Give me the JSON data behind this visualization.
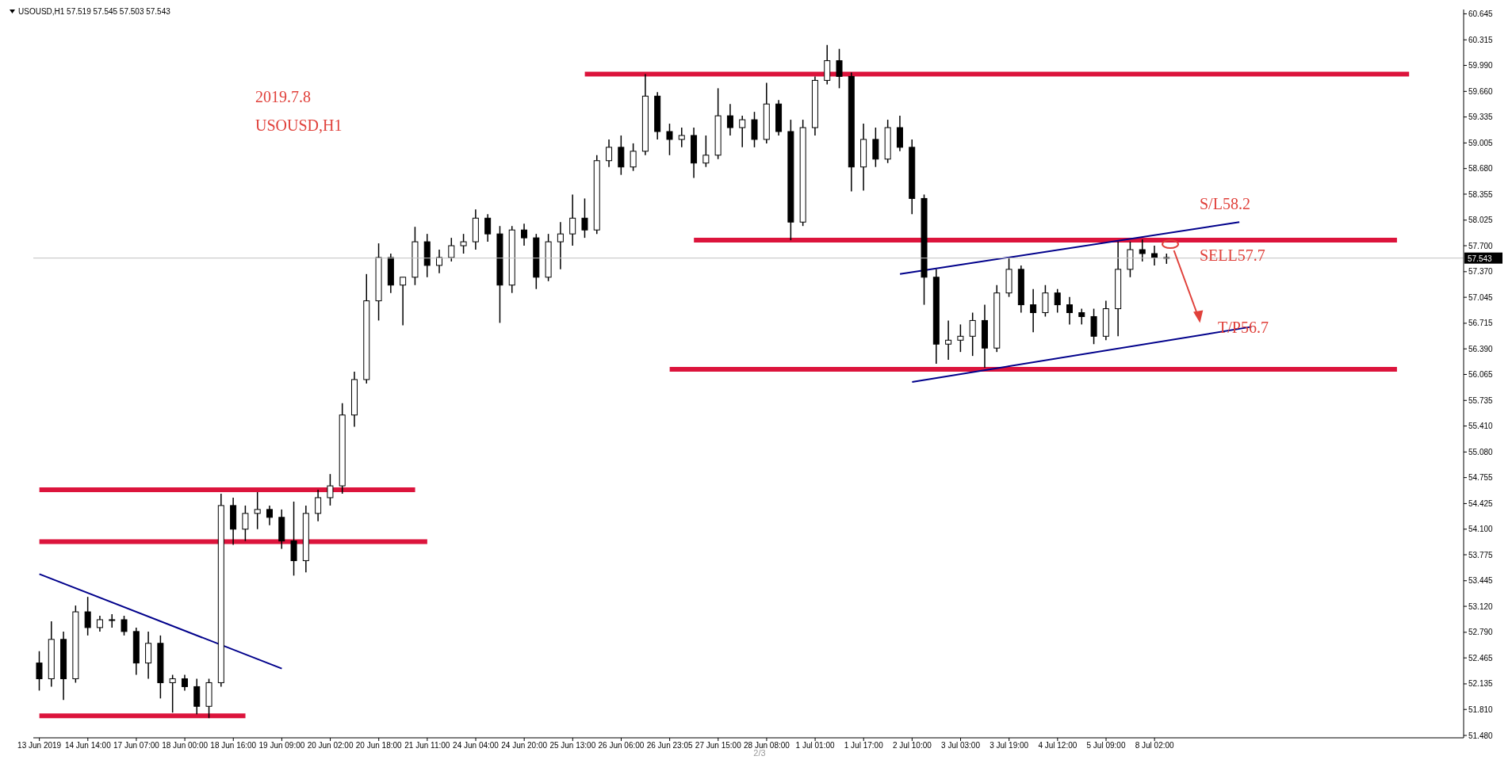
{
  "chart_data": {
    "type": "candlestick",
    "title": "USOUSD,H1 57.519 57.545 57.503 57.543",
    "categories": [
      "13 Jun 2019",
      null,
      null,
      null,
      "14 Jun 14:00",
      null,
      null,
      null,
      "17 Jun 07:00",
      null,
      null,
      null,
      "18 Jun 00:00",
      null,
      null,
      null,
      "18 Jun 16:00",
      null,
      null,
      null,
      "19 Jun 09:00",
      null,
      null,
      null,
      "20 Jun 02:00",
      null,
      null,
      null,
      "20 Jun 18:00",
      null,
      null,
      null,
      "21 Jun 11:00",
      null,
      null,
      null,
      "24 Jun 04:00",
      null,
      null,
      null,
      "24 Jun 20:00",
      null,
      null,
      null,
      "25 Jun 13:00",
      null,
      null,
      null,
      "26 Jun 06:00",
      null,
      null,
      null,
      "26 Jun 23:05",
      null,
      null,
      null,
      "27 Jun 15:00",
      null,
      null,
      null,
      "28 Jun 08:00",
      null,
      null,
      null,
      "1 Jul 01:00",
      null,
      null,
      null,
      "1 Jul 17:00",
      null,
      null,
      null,
      "2 Jul 10:00",
      null,
      null,
      null,
      "3 Jul 03:00",
      null,
      null,
      null,
      "3 Jul 19:00",
      null,
      null,
      null,
      "4 Jul 12:00",
      null,
      null,
      null,
      "5 Jul 09:00",
      null,
      null,
      null,
      "8 Jul 02:00",
      null,
      null,
      null,
      null,
      null,
      null,
      null,
      null,
      null,
      null,
      null,
      null,
      null,
      null,
      null,
      null,
      null,
      null,
      null,
      null,
      null,
      null,
      null,
      null,
      null
    ],
    "ohlc": [
      [
        52.4,
        52.55,
        52.05,
        52.2
      ],
      [
        52.2,
        52.93,
        52.1,
        52.7
      ],
      [
        52.7,
        52.8,
        51.93,
        52.2
      ],
      [
        52.2,
        53.13,
        52.15,
        53.05
      ],
      [
        53.05,
        53.24,
        52.75,
        52.85
      ],
      [
        52.85,
        53.0,
        52.8,
        52.95
      ],
      [
        52.95,
        53.02,
        52.85,
        52.95
      ],
      [
        52.95,
        53.0,
        52.75,
        52.8
      ],
      [
        52.8,
        52.85,
        52.25,
        52.4
      ],
      [
        52.4,
        52.8,
        52.2,
        52.65
      ],
      [
        52.65,
        52.75,
        51.95,
        52.15
      ],
      [
        52.15,
        52.25,
        51.77,
        52.2
      ],
      [
        52.2,
        52.25,
        52.05,
        52.1
      ],
      [
        52.1,
        52.2,
        51.75,
        51.85
      ],
      [
        51.85,
        52.2,
        51.7,
        52.15
      ],
      [
        52.15,
        54.55,
        52.1,
        54.4
      ],
      [
        54.4,
        54.5,
        53.9,
        54.1
      ],
      [
        54.1,
        54.4,
        53.95,
        54.3
      ],
      [
        54.3,
        54.57,
        54.1,
        54.35
      ],
      [
        54.35,
        54.4,
        54.15,
        54.25
      ],
      [
        54.25,
        54.35,
        53.85,
        53.95
      ],
      [
        53.95,
        54.45,
        53.51,
        53.7
      ],
      [
        53.7,
        54.4,
        53.55,
        54.3
      ],
      [
        54.3,
        54.6,
        54.2,
        54.5
      ],
      [
        54.5,
        54.8,
        54.4,
        54.65
      ],
      [
        54.65,
        55.7,
        54.55,
        55.55
      ],
      [
        55.55,
        56.1,
        55.4,
        56.0
      ],
      [
        56.0,
        57.34,
        55.95,
        57.0
      ],
      [
        57.0,
        57.73,
        56.75,
        57.55
      ],
      [
        57.55,
        57.6,
        57.1,
        57.2
      ],
      [
        57.2,
        57.3,
        56.69,
        57.3
      ],
      [
        57.3,
        57.94,
        57.2,
        57.75
      ],
      [
        57.75,
        57.85,
        57.3,
        57.45
      ],
      [
        57.45,
        57.65,
        57.35,
        57.55
      ],
      [
        57.55,
        57.8,
        57.5,
        57.7
      ],
      [
        57.7,
        57.85,
        57.6,
        57.75
      ],
      [
        57.75,
        58.16,
        57.65,
        58.05
      ],
      [
        58.05,
        58.1,
        57.75,
        57.85
      ],
      [
        57.85,
        57.95,
        56.72,
        57.2
      ],
      [
        57.2,
        57.95,
        57.1,
        57.9
      ],
      [
        57.9,
        57.98,
        57.7,
        57.8
      ],
      [
        57.8,
        57.85,
        57.15,
        57.3
      ],
      [
        57.3,
        57.85,
        57.25,
        57.75
      ],
      [
        57.75,
        58.0,
        57.4,
        57.85
      ],
      [
        57.85,
        58.35,
        57.7,
        58.05
      ],
      [
        58.05,
        58.3,
        57.8,
        57.9
      ],
      [
        57.9,
        58.85,
        57.85,
        58.78
      ],
      [
        58.78,
        59.05,
        58.7,
        58.95
      ],
      [
        58.95,
        59.1,
        58.6,
        58.7
      ],
      [
        58.7,
        59.0,
        58.65,
        58.9
      ],
      [
        58.9,
        59.88,
        58.85,
        59.6
      ],
      [
        59.6,
        59.65,
        59.05,
        59.15
      ],
      [
        59.15,
        59.25,
        58.85,
        59.05
      ],
      [
        59.05,
        59.2,
        58.95,
        59.1
      ],
      [
        59.1,
        59.2,
        58.56,
        58.75
      ],
      [
        58.75,
        59.1,
        58.7,
        58.85
      ],
      [
        58.85,
        59.7,
        58.8,
        59.35
      ],
      [
        59.35,
        59.5,
        59.1,
        59.2
      ],
      [
        59.2,
        59.35,
        58.95,
        59.3
      ],
      [
        59.3,
        59.4,
        58.95,
        59.05
      ],
      [
        59.05,
        59.77,
        59.0,
        59.5
      ],
      [
        59.5,
        59.55,
        59.1,
        59.15
      ],
      [
        59.15,
        59.3,
        57.77,
        58.0
      ],
      [
        58.0,
        59.3,
        57.95,
        59.2
      ],
      [
        59.2,
        59.85,
        59.1,
        59.8
      ],
      [
        59.8,
        60.25,
        59.75,
        60.05
      ],
      [
        60.05,
        60.2,
        59.7,
        59.85
      ],
      [
        59.85,
        59.9,
        58.39,
        58.7
      ],
      [
        58.7,
        59.25,
        58.4,
        59.05
      ],
      [
        59.05,
        59.2,
        58.7,
        58.8
      ],
      [
        58.8,
        59.3,
        58.75,
        59.2
      ],
      [
        59.2,
        59.35,
        58.9,
        58.95
      ],
      [
        58.95,
        59.05,
        58.1,
        58.3
      ],
      [
        58.3,
        58.35,
        56.95,
        57.3
      ],
      [
        57.3,
        57.4,
        56.2,
        56.45
      ],
      [
        56.45,
        56.75,
        56.25,
        56.5
      ],
      [
        56.5,
        56.7,
        56.35,
        56.55
      ],
      [
        56.55,
        56.85,
        56.3,
        56.75
      ],
      [
        56.75,
        56.95,
        56.15,
        56.4
      ],
      [
        56.4,
        57.2,
        56.35,
        57.1
      ],
      [
        57.1,
        57.55,
        57.05,
        57.4
      ],
      [
        57.4,
        57.45,
        56.85,
        56.95
      ],
      [
        56.95,
        57.15,
        56.6,
        56.85
      ],
      [
        56.85,
        57.2,
        56.8,
        57.1
      ],
      [
        57.1,
        57.15,
        56.85,
        56.95
      ],
      [
        56.95,
        57.05,
        56.7,
        56.85
      ],
      [
        56.85,
        56.9,
        56.7,
        56.8
      ],
      [
        56.8,
        56.9,
        56.45,
        56.55
      ],
      [
        56.55,
        57.0,
        56.5,
        56.9
      ],
      [
        56.9,
        57.75,
        56.55,
        57.4
      ],
      [
        57.4,
        57.75,
        57.3,
        57.65
      ],
      [
        57.65,
        57.78,
        57.5,
        57.6
      ],
      [
        57.6,
        57.7,
        57.45,
        57.55
      ],
      [
        57.55,
        57.6,
        57.47,
        57.543
      ],
      null,
      null,
      null,
      null,
      null,
      null,
      null,
      null,
      null,
      null,
      null,
      null,
      null,
      null,
      null,
      null,
      null,
      null,
      null,
      null,
      null,
      null,
      null,
      null
    ],
    "series": [
      {
        "type": "line",
        "color": "#dc143c",
        "values": [
          null,
          null,
          null,
          null,
          null,
          null,
          null,
          null,
          null,
          null,
          null,
          null,
          null,
          null,
          null,
          null,
          null,
          null,
          null,
          null,
          null,
          null,
          null,
          null,
          null,
          null,
          null,
          null,
          null,
          null,
          null,
          null,
          null,
          null,
          null,
          null,
          null,
          null,
          null,
          null,
          null,
          null,
          null,
          null,
          null,
          59.88,
          null,
          null,
          null,
          null,
          null,
          null,
          null,
          null,
          null,
          null,
          null,
          null,
          null,
          null,
          null,
          null,
          null,
          null,
          null,
          null,
          null,
          null,
          null,
          null,
          null,
          null,
          null,
          null,
          null,
          null,
          null,
          null,
          null,
          null,
          null,
          null,
          null,
          null,
          null,
          null,
          null,
          null,
          null,
          null,
          null,
          null,
          null,
          null,
          null,
          null,
          null,
          null,
          null,
          null,
          null,
          null,
          null,
          null,
          null,
          null,
          null,
          null,
          null,
          null,
          null,
          null,
          null,
          59.88,
          null,
          null,
          null,
          null
        ]
      },
      {
        "type": "line",
        "color": "#dc143c",
        "values": [
          null,
          null,
          null,
          null,
          null,
          null,
          null,
          null,
          null,
          null,
          null,
          null,
          null,
          null,
          null,
          null,
          null,
          null,
          null,
          null,
          null,
          null,
          null,
          null,
          null,
          null,
          null,
          null,
          null,
          null,
          null,
          null,
          null,
          null,
          null,
          null,
          null,
          null,
          null,
          null,
          null,
          null,
          null,
          null,
          null,
          null,
          null,
          null,
          null,
          null,
          null,
          null,
          null,
          null,
          57.77,
          null,
          null,
          null,
          null,
          null,
          null,
          null,
          null,
          null,
          null,
          null,
          null,
          null,
          null,
          null,
          null,
          null,
          null,
          null,
          null,
          null,
          null,
          null,
          null,
          null,
          null,
          null,
          null,
          null,
          null,
          null,
          null,
          null,
          null,
          null,
          null,
          null,
          null,
          null,
          null,
          null,
          null,
          null,
          null,
          null,
          null,
          null,
          null,
          null,
          null,
          null,
          null,
          null,
          null,
          null,
          null,
          null,
          57.77,
          null,
          null,
          null,
          null,
          null
        ]
      },
      {
        "type": "line",
        "color": "#dc143c",
        "values": [
          null,
          null,
          null,
          null,
          null,
          null,
          null,
          null,
          null,
          null,
          null,
          null,
          null,
          null,
          null,
          null,
          null,
          null,
          null,
          null,
          null,
          null,
          null,
          null,
          null,
          null,
          null,
          null,
          null,
          null,
          null,
          null,
          null,
          null,
          null,
          null,
          null,
          null,
          null,
          null,
          null,
          null,
          null,
          null,
          null,
          null,
          null,
          null,
          null,
          null,
          null,
          null,
          56.13,
          null,
          null,
          null,
          null,
          null,
          null,
          null,
          null,
          null,
          null,
          null,
          null,
          null,
          null,
          null,
          null,
          null,
          null,
          null,
          null,
          null,
          null,
          null,
          null,
          null,
          null,
          null,
          null,
          null,
          null,
          null,
          null,
          null,
          null,
          null,
          null,
          null,
          null,
          null,
          null,
          null,
          null,
          null,
          null,
          null,
          null,
          null,
          null,
          null,
          null,
          null,
          null,
          null,
          null,
          null,
          null,
          null,
          null,
          null,
          56.13,
          null,
          null,
          null,
          null,
          null
        ]
      },
      {
        "type": "line",
        "color": "#dc143c",
        "values": [
          54.6,
          null,
          null,
          null,
          null,
          null,
          null,
          null,
          null,
          null,
          null,
          null,
          null,
          null,
          null,
          null,
          null,
          null,
          null,
          null,
          null,
          null,
          null,
          null,
          null,
          null,
          null,
          null,
          null,
          null,
          null,
          54.6,
          null,
          null,
          null,
          null,
          null,
          null,
          null,
          null,
          null,
          null,
          null,
          null,
          null,
          null,
          null,
          null,
          null,
          null,
          null,
          null,
          null,
          null,
          null,
          null,
          null,
          null,
          null,
          null,
          null,
          null,
          null,
          null,
          null,
          null,
          null,
          null,
          null,
          null,
          null,
          null,
          null,
          null,
          null,
          null,
          null,
          null,
          null,
          null,
          null,
          null,
          null,
          null,
          null,
          null,
          null,
          null,
          null,
          null,
          null,
          null,
          null,
          null,
          null,
          null,
          null,
          null,
          null,
          null,
          null,
          null,
          null,
          null,
          null,
          null,
          null,
          null,
          null,
          null,
          null,
          null,
          null,
          null,
          null,
          null,
          null,
          null
        ]
      },
      {
        "type": "line",
        "color": "#dc143c",
        "values": [
          53.94,
          null,
          null,
          null,
          null,
          null,
          null,
          null,
          null,
          null,
          null,
          null,
          null,
          null,
          null,
          null,
          null,
          null,
          null,
          null,
          null,
          null,
          null,
          null,
          null,
          null,
          null,
          null,
          null,
          null,
          null,
          null,
          53.94,
          null,
          null,
          null,
          null,
          null,
          null,
          null,
          null,
          null,
          null,
          null,
          null,
          null,
          null,
          null,
          null,
          null,
          null,
          null,
          null,
          null,
          null,
          null,
          null,
          null,
          null,
          null,
          null,
          null,
          null,
          null,
          null,
          null,
          null,
          null,
          null,
          null,
          null,
          null,
          null,
          null,
          null,
          null,
          null,
          null,
          null,
          null,
          null,
          null,
          null,
          null,
          null,
          null,
          null,
          null,
          null,
          null,
          null,
          null,
          null,
          null,
          null,
          null,
          null,
          null,
          null,
          null,
          null,
          null,
          null,
          null,
          null,
          null,
          null,
          null,
          null,
          null,
          null,
          null,
          null,
          null,
          null,
          null,
          null,
          null
        ]
      },
      {
        "type": "line",
        "color": "#dc143c",
        "values": [
          51.73,
          null,
          null,
          null,
          null,
          null,
          null,
          null,
          null,
          null,
          null,
          null,
          null,
          null,
          null,
          null,
          null,
          51.73,
          null,
          null,
          null,
          null,
          null,
          null,
          null,
          null,
          null,
          null,
          null,
          null,
          null,
          null,
          null,
          null,
          null,
          null,
          null,
          null,
          null,
          null,
          null,
          null,
          null,
          null,
          null,
          null,
          null,
          null,
          null,
          null,
          null,
          null,
          null,
          null,
          null,
          null,
          null,
          null,
          null,
          null,
          null,
          null,
          null,
          null,
          null,
          null,
          null,
          null,
          null,
          null,
          null,
          null,
          null,
          null,
          null,
          null,
          null,
          null,
          null,
          null,
          null,
          null,
          null,
          null,
          null,
          null,
          null,
          null,
          null,
          null,
          null,
          null,
          null,
          null,
          null,
          null,
          null,
          null,
          null,
          null,
          null,
          null,
          null,
          null,
          null,
          null,
          null,
          null,
          null,
          null,
          null,
          null,
          null,
          null,
          null,
          null,
          null,
          null
        ]
      },
      {
        "type": "line",
        "color": "#00008b",
        "values": [
          53.53,
          null,
          null,
          null,
          null,
          null,
          null,
          null,
          null,
          null,
          null,
          null,
          null,
          null,
          null,
          null,
          null,
          null,
          null,
          null,
          52.33,
          null,
          null,
          null,
          null,
          null,
          null,
          null,
          null,
          null,
          null,
          null,
          null,
          null,
          null,
          null,
          null,
          null,
          null,
          null,
          null,
          null,
          null,
          null,
          null,
          null,
          null,
          null,
          null,
          null,
          null,
          null,
          null,
          null,
          null,
          null,
          null,
          null,
          null,
          null,
          null,
          null,
          null,
          null,
          null,
          null,
          null,
          null,
          null,
          null,
          null,
          null,
          null,
          null,
          null,
          null,
          null,
          null,
          null,
          null,
          null,
          null,
          null,
          null,
          null,
          null,
          null,
          null,
          null,
          null,
          null,
          null,
          null,
          null,
          null,
          null,
          null,
          null,
          null,
          null,
          null,
          null,
          null,
          null,
          null,
          null,
          null,
          null,
          null,
          null,
          null,
          null,
          null,
          null,
          null,
          null,
          null,
          null
        ]
      },
      {
        "type": "line",
        "color": "#00008b",
        "values": [
          null,
          null,
          null,
          null,
          null,
          null,
          null,
          null,
          null,
          null,
          null,
          null,
          null,
          null,
          null,
          null,
          null,
          null,
          null,
          null,
          null,
          null,
          null,
          null,
          null,
          null,
          null,
          null,
          null,
          null,
          null,
          null,
          null,
          null,
          null,
          null,
          null,
          null,
          null,
          null,
          null,
          null,
          null,
          null,
          null,
          null,
          null,
          null,
          null,
          null,
          null,
          null,
          null,
          null,
          null,
          null,
          null,
          null,
          null,
          null,
          null,
          null,
          null,
          null,
          null,
          null,
          null,
          null,
          null,
          null,
          null,
          57.34,
          null,
          null,
          null,
          null,
          null,
          null,
          null,
          null,
          null,
          null,
          null,
          null,
          null,
          null,
          null,
          null,
          null,
          null,
          null,
          null,
          null,
          null,
          null,
          null,
          null,
          null,
          null,
          58.0,
          null,
          null,
          null,
          null,
          null,
          null,
          null,
          null,
          null,
          null,
          null,
          null,
          null,
          null,
          null,
          null,
          null,
          null
        ]
      },
      {
        "type": "line",
        "color": "#00008b",
        "values": [
          null,
          null,
          null,
          null,
          null,
          null,
          null,
          null,
          null,
          null,
          null,
          null,
          null,
          null,
          null,
          null,
          null,
          null,
          null,
          null,
          null,
          null,
          null,
          null,
          null,
          null,
          null,
          null,
          null,
          null,
          null,
          null,
          null,
          null,
          null,
          null,
          null,
          null,
          null,
          null,
          null,
          null,
          null,
          null,
          null,
          null,
          null,
          null,
          null,
          null,
          null,
          null,
          null,
          null,
          null,
          null,
          null,
          null,
          null,
          null,
          null,
          null,
          null,
          null,
          null,
          null,
          null,
          null,
          null,
          null,
          null,
          null,
          55.97,
          null,
          null,
          null,
          null,
          null,
          null,
          null,
          null,
          null,
          null,
          null,
          null,
          null,
          null,
          null,
          null,
          null,
          null,
          null,
          null,
          null,
          null,
          null,
          null,
          null,
          null,
          null,
          56.67,
          null,
          null,
          null,
          null,
          null,
          null,
          null,
          null,
          null,
          null,
          null,
          null,
          null,
          null,
          null,
          null,
          null
        ]
      }
    ],
    "ylim": [
      51.45,
      60.7
    ],
    "yticks": [
      60.645,
      60.315,
      {
        "value": 59.99,
        "label": "59.990"
      },
      {
        "value": 59.66,
        "label": "59.660"
      },
      59.335,
      59.005,
      {
        "value": 58.68,
        "label": "58.680"
      },
      58.355,
      58.025,
      {
        "value": 57.7,
        "label": "57.700"
      },
      {
        "value": 57.37,
        "label": "57.370"
      },
      57.045,
      56.715,
      {
        "value": 56.39,
        "label": "56.390"
      },
      56.065,
      55.735,
      {
        "value": 55.41,
        "label": "55.410"
      },
      {
        "value": 55.08,
        "label": "55.080"
      },
      54.755,
      54.425,
      {
        "value": 54.1,
        "label": "54.100"
      },
      53.775,
      53.445,
      {
        "value": 53.12,
        "label": "53.120"
      },
      {
        "value": 52.79,
        "label": "52.790"
      },
      52.465,
      52.135,
      {
        "value": 51.81,
        "label": "51.810"
      },
      {
        "value": 51.48,
        "label": "51.480"
      }
    ],
    "ref_lines": [
      {
        "axis": "y",
        "value": 57.543,
        "label": "57.543",
        "color": "#c0c0c0"
      }
    ],
    "annotations": [
      "2019.7.8",
      "USOUSD,H1",
      "S/L58.2",
      "SELL57.7",
      "T/P56.7",
      "2/3"
    ]
  }
}
